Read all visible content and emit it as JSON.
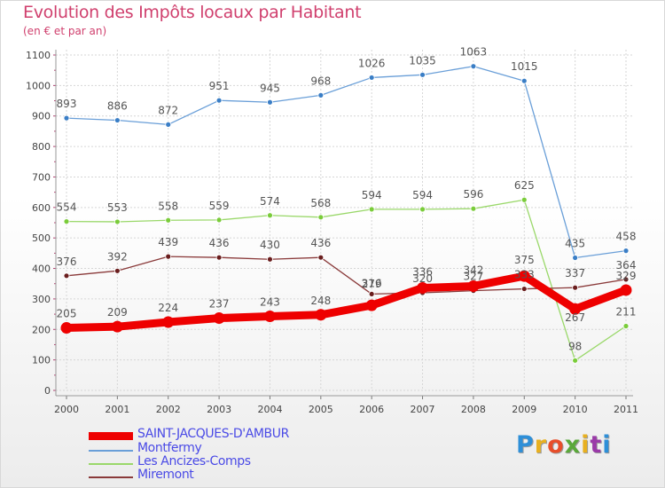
{
  "header": {
    "title": "Evolution des Impôts locaux par Habitant",
    "subtitle": "(en € et par an)"
  },
  "logo": {
    "text": "Proxiti",
    "letter_colors": [
      "#2e8fd8",
      "#e8b020",
      "#e84e2a",
      "#5aa83a",
      "#e8b020",
      "#9a3aa8",
      "#2e8fd8"
    ]
  },
  "chart_data": {
    "type": "line",
    "x": [
      "2000",
      "2001",
      "2002",
      "2003",
      "2004",
      "2005",
      "2006",
      "2007",
      "2008",
      "2009",
      "2010",
      "2011"
    ],
    "ylim": [
      0,
      1100
    ],
    "yticks": [
      0,
      100,
      200,
      300,
      400,
      500,
      600,
      700,
      800,
      900,
      1000,
      1100
    ],
    "grid": true,
    "legend_position": "bottom-left",
    "series": [
      {
        "name": "Montfermy",
        "color": "#6a9fd8",
        "marker_color": "#3a7ec6",
        "values": [
          893,
          886,
          872,
          951,
          945,
          968,
          1026,
          1035,
          1063,
          1015,
          435,
          458
        ],
        "labels": [
          "893",
          "886",
          "872",
          "951",
          "945",
          "968",
          "1026",
          "1035",
          "1063",
          "1015",
          "435",
          "458"
        ]
      },
      {
        "name": "Les Ancizes-Comps",
        "color": "#9ad86a",
        "marker_color": "#7acc3a",
        "values": [
          554,
          553,
          558,
          559,
          574,
          568,
          594,
          594,
          596,
          625,
          98,
          211
        ],
        "labels": [
          "554",
          "553",
          "558",
          "559",
          "574",
          "568",
          "594",
          "594",
          "596",
          "625",
          "98",
          "211"
        ]
      },
      {
        "name": "Miremont",
        "color": "#8a3a3a",
        "marker_color": "#6a1e1e",
        "values": [
          376,
          392,
          439,
          436,
          430,
          436,
          316,
          320,
          327,
          333,
          337,
          364
        ],
        "labels": [
          "376",
          "392",
          "439",
          "436",
          "430",
          "436",
          "316",
          "320",
          "327",
          "333",
          "337",
          "364"
        ]
      },
      {
        "name": "SAINT-JACQUES-D'AMBUR",
        "color": "#ee0000",
        "marker_color": "#ee0000",
        "values": [
          205,
          209,
          224,
          237,
          243,
          248,
          279,
          336,
          342,
          375,
          267,
          329
        ],
        "labels": [
          "205",
          "209",
          "224",
          "237",
          "243",
          "248",
          "279",
          "336",
          "342",
          "375",
          "267",
          "329"
        ]
      }
    ]
  },
  "legend": {
    "items": [
      {
        "label": "SAINT-JACQUES-D'AMBUR",
        "color": "#ee0000",
        "thick": true
      },
      {
        "label": "Montfermy",
        "color": "#6a9fd8",
        "thick": false
      },
      {
        "label": "Les Ancizes-Comps",
        "color": "#9ad86a",
        "thick": false
      },
      {
        "label": "Miremont",
        "color": "#8a3a3a",
        "thick": false
      }
    ]
  }
}
